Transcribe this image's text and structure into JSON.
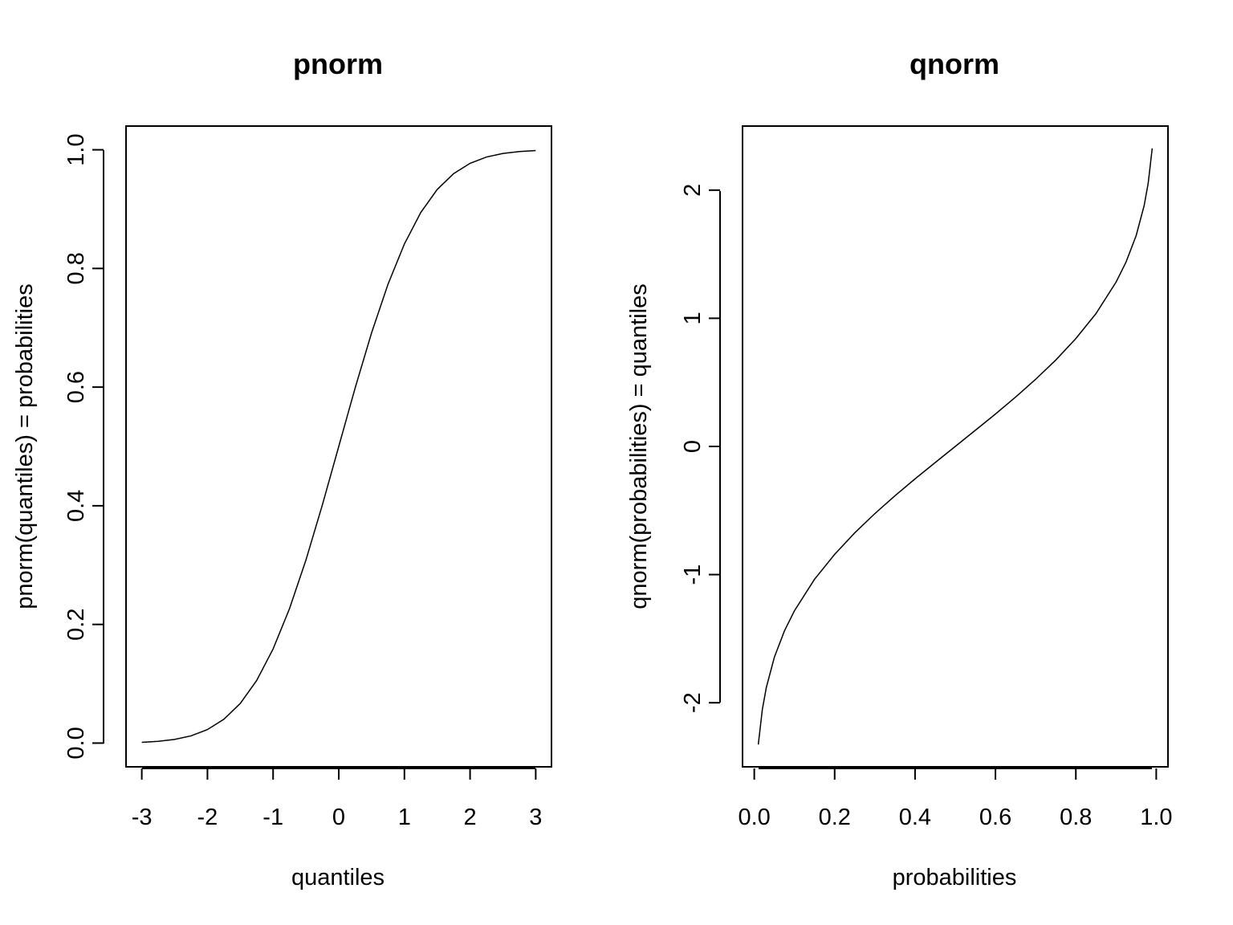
{
  "chart_data": [
    {
      "type": "line",
      "title": "pnorm",
      "xlabel": "quantiles",
      "ylabel": "pnorm(quantiles) = probabilities",
      "xlim": [
        -3.24,
        3.24
      ],
      "ylim": [
        -0.04,
        1.04
      ],
      "x_ticks": [
        -3,
        -2,
        -1,
        0,
        1,
        2,
        3
      ],
      "x_tick_labels": [
        "-3",
        "-2",
        "-1",
        "0",
        "1",
        "2",
        "3"
      ],
      "y_ticks": [
        0.0,
        0.2,
        0.4,
        0.6,
        0.8,
        1.0
      ],
      "y_tick_labels": [
        "0.0",
        "0.2",
        "0.4",
        "0.6",
        "0.8",
        "1.0"
      ],
      "grid": false,
      "series": [
        {
          "x": [
            -3.0,
            -2.75,
            -2.5,
            -2.25,
            -2.0,
            -1.75,
            -1.5,
            -1.25,
            -1.0,
            -0.75,
            -0.5,
            -0.25,
            0.0,
            0.25,
            0.5,
            0.75,
            1.0,
            1.25,
            1.5,
            1.75,
            2.0,
            2.25,
            2.5,
            2.75,
            3.0
          ],
          "values": [
            0.0013,
            0.003,
            0.0062,
            0.0122,
            0.0228,
            0.0401,
            0.0668,
            0.1056,
            0.1587,
            0.2266,
            0.3085,
            0.4013,
            0.5,
            0.5987,
            0.6915,
            0.7734,
            0.8413,
            0.8944,
            0.9332,
            0.9599,
            0.9772,
            0.9878,
            0.9938,
            0.997,
            0.9987
          ]
        }
      ]
    },
    {
      "type": "line",
      "title": "qnorm",
      "xlabel": "probabilities",
      "ylabel": "qnorm(probabilities) = quantiles",
      "xlim": [
        -0.0292,
        1.0292
      ],
      "ylim": [
        -2.5,
        2.5
      ],
      "x_ticks": [
        0.0,
        0.2,
        0.4,
        0.6,
        0.8,
        1.0
      ],
      "x_tick_labels": [
        "0.0",
        "0.2",
        "0.4",
        "0.6",
        "0.8",
        "1.0"
      ],
      "y_ticks": [
        -2,
        -1,
        0,
        1,
        2
      ],
      "y_tick_labels": [
        "-2",
        "-1",
        "0",
        "1",
        "2"
      ],
      "grid": false,
      "series": [
        {
          "x": [
            0.01,
            0.02,
            0.03,
            0.05,
            0.075,
            0.1,
            0.15,
            0.2,
            0.25,
            0.3,
            0.35,
            0.4,
            0.45,
            0.5,
            0.55,
            0.6,
            0.65,
            0.7,
            0.75,
            0.8,
            0.85,
            0.9,
            0.925,
            0.95,
            0.97,
            0.98,
            0.99
          ],
          "values": [
            -2.326,
            -2.054,
            -1.881,
            -1.645,
            -1.44,
            -1.282,
            -1.036,
            -0.842,
            -0.674,
            -0.524,
            -0.385,
            -0.253,
            -0.126,
            0.0,
            0.126,
            0.253,
            0.385,
            0.524,
            0.674,
            0.842,
            1.036,
            1.282,
            1.44,
            1.645,
            1.881,
            2.054,
            2.326
          ]
        }
      ]
    }
  ]
}
